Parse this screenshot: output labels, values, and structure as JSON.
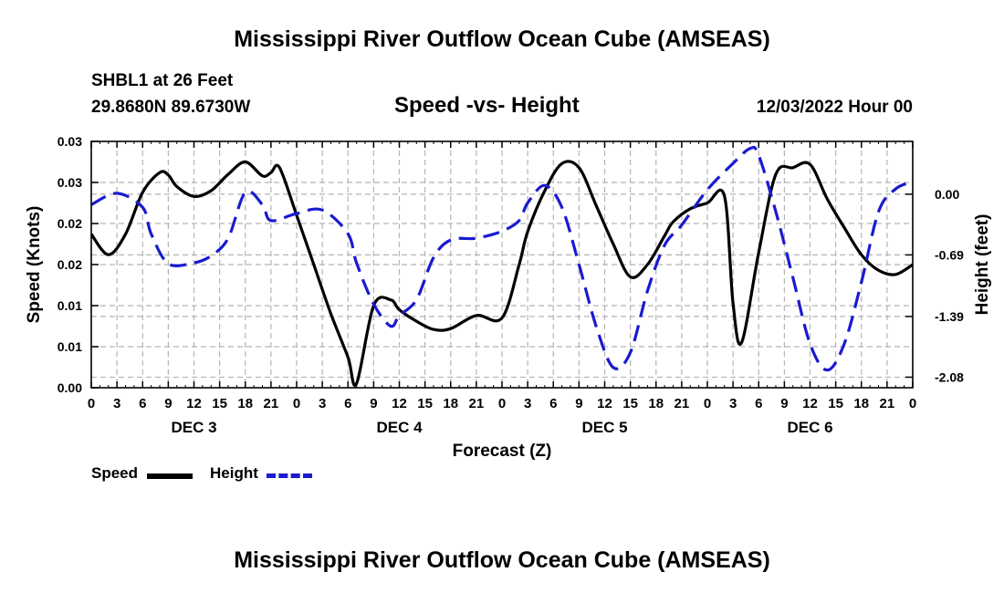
{
  "page": {
    "title": "Mississippi River Outflow Ocean Cube (AMSEAS)",
    "station": "SHBL1 at 26 Feet",
    "coords": "29.8680N  89.6730W",
    "timestamp": "12/03/2022 Hour 00",
    "footer_title": "Mississippi River Outflow Ocean Cube (AMSEAS)"
  },
  "legend": {
    "speed_label": "Speed",
    "height_label": "Height"
  },
  "colors": {
    "speed": "#000000",
    "height": "#1a1ad0",
    "grid": "#b4b4b4"
  },
  "chart_data": {
    "type": "line",
    "title": "Speed -vs- Height",
    "xlabel": "Forecast (Z)",
    "ylabel": "Speed (Knots)",
    "y2label": "Height (feet)",
    "xlim": [
      0,
      96
    ],
    "ylim": [
      0,
      0.03
    ],
    "y2lim": [
      -2.2,
      0.6
    ],
    "yticks": [
      0,
      0.005,
      0.01,
      0.015,
      0.02,
      0.025,
      0.03
    ],
    "ytick_labels": [
      "0.00",
      "0.01",
      "0.01",
      "0.02",
      "0.02",
      "0.03",
      "0.03"
    ],
    "y2ticks": [
      0.0,
      -0.69,
      -1.39,
      -2.08
    ],
    "y2tick_labels": [
      "0.00",
      "-0.69",
      "-1.39",
      "-2.08"
    ],
    "xticks": [
      0,
      3,
      6,
      9,
      12,
      15,
      18,
      21,
      24,
      27,
      30,
      33,
      36,
      39,
      42,
      45,
      48,
      51,
      54,
      57,
      60,
      63,
      66,
      69,
      72,
      75,
      78,
      81,
      84,
      87,
      90,
      93,
      96
    ],
    "xtick_labels": [
      "0",
      "3",
      "6",
      "9",
      "12",
      "15",
      "18",
      "21",
      "0",
      "3",
      "6",
      "9",
      "12",
      "15",
      "18",
      "21",
      "0",
      "3",
      "6",
      "9",
      "12",
      "15",
      "18",
      "21",
      "0",
      "3",
      "6",
      "9",
      "12",
      "15",
      "18",
      "21",
      "0"
    ],
    "day_labels": [
      {
        "label": "DEC 3",
        "x": 12
      },
      {
        "label": "DEC 4",
        "x": 36
      },
      {
        "label": "DEC 5",
        "x": 60
      },
      {
        "label": "DEC 6",
        "x": 84
      }
    ],
    "series": [
      {
        "name": "Speed",
        "axis": "left",
        "style": "solid",
        "x": [
          0,
          2,
          4,
          6,
          8,
          9,
          10,
          12,
          14,
          16,
          18,
          20,
          21,
          22,
          24,
          26,
          28,
          30,
          31,
          33,
          35,
          36,
          38,
          40,
          42,
          45,
          48,
          50,
          51,
          53,
          55,
          57,
          59,
          61,
          63,
          65,
          67,
          68,
          70,
          72,
          74,
          75,
          76,
          78,
          80,
          82,
          84,
          86,
          88,
          90,
          92,
          94,
          96
        ],
        "y": [
          0.0187,
          0.0162,
          0.0187,
          0.0238,
          0.0262,
          0.0259,
          0.0245,
          0.0233,
          0.024,
          0.026,
          0.0275,
          0.0258,
          0.0262,
          0.0268,
          0.021,
          0.015,
          0.009,
          0.0037,
          0.0005,
          0.01,
          0.0107,
          0.0095,
          0.0081,
          0.0071,
          0.0072,
          0.0088,
          0.0085,
          0.015,
          0.019,
          0.024,
          0.0273,
          0.0268,
          0.0222,
          0.0175,
          0.0135,
          0.015,
          0.0185,
          0.0202,
          0.0218,
          0.0225,
          0.0233,
          0.0103,
          0.0055,
          0.0165,
          0.026,
          0.0268,
          0.0272,
          0.023,
          0.0195,
          0.0162,
          0.0143,
          0.0138,
          0.015
        ]
      },
      {
        "name": "Height",
        "axis": "right",
        "style": "dashed",
        "x": [
          0,
          3,
          6,
          7,
          9,
          12,
          14,
          16,
          18,
          20,
          21,
          24,
          27,
          30,
          31,
          33,
          35,
          36,
          38,
          40,
          42,
          45,
          48,
          50,
          51,
          53,
          55,
          57,
          59,
          61,
          63,
          65,
          67,
          69,
          72,
          75,
          77,
          78,
          80,
          82,
          84,
          86,
          88,
          90,
          92,
          94,
          96
        ],
        "y": [
          -0.12,
          0.01,
          -0.15,
          -0.45,
          -0.79,
          -0.78,
          -0.7,
          -0.5,
          0.02,
          -0.12,
          -0.3,
          -0.22,
          -0.18,
          -0.45,
          -0.78,
          -1.25,
          -1.5,
          -1.38,
          -1.2,
          -0.72,
          -0.52,
          -0.5,
          -0.42,
          -0.3,
          -0.1,
          0.1,
          -0.15,
          -0.8,
          -1.5,
          -1.97,
          -1.8,
          -1.1,
          -0.58,
          -0.35,
          0.05,
          0.35,
          0.52,
          0.44,
          -0.2,
          -0.95,
          -1.7,
          -2.0,
          -1.7,
          -1.0,
          -0.2,
          0.06,
          0.14
        ]
      }
    ]
  }
}
